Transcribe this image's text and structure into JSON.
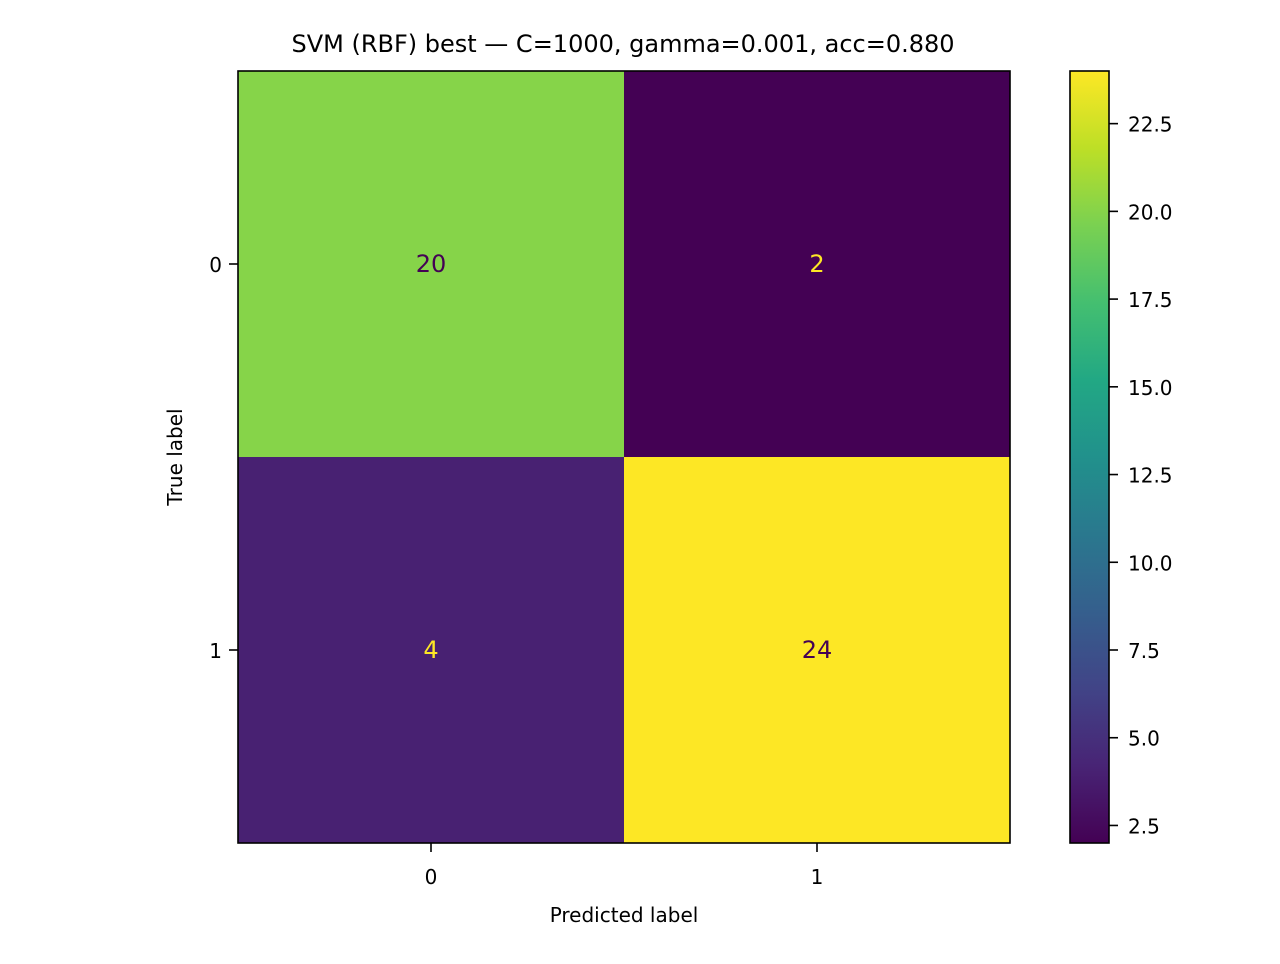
{
  "chart_data": {
    "type": "heatmap",
    "title": "SVM (RBF) best — C=1000, gamma=0.001, acc=0.880",
    "xlabel": "Predicted label",
    "ylabel": "True label",
    "x_categories": [
      "0",
      "1"
    ],
    "y_categories": [
      "0",
      "1"
    ],
    "matrix": [
      [
        20,
        2
      ],
      [
        4,
        24
      ]
    ],
    "cell_labels": [
      [
        "20",
        "2"
      ],
      [
        "4",
        "24"
      ]
    ],
    "colormap": "viridis",
    "colorbar": {
      "range": [
        2,
        24
      ],
      "ticks": [
        2.5,
        5.0,
        7.5,
        10.0,
        12.5,
        15.0,
        17.5,
        20.0,
        22.5
      ],
      "tick_labels": [
        "2.5",
        "5.0",
        "7.5",
        "10.0",
        "12.5",
        "15.0",
        "17.5",
        "20.0",
        "22.5"
      ]
    },
    "grid": false,
    "text_colors": {
      "on_dark": "#fde725",
      "on_light": "#440154"
    }
  }
}
